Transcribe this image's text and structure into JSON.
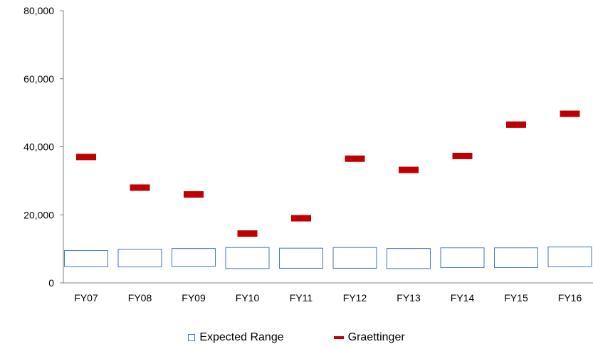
{
  "chart_data": {
    "type": "bar",
    "categories": [
      "FY07",
      "FY08",
      "FY09",
      "FY10",
      "FY11",
      "FY12",
      "FY13",
      "FY14",
      "FY15",
      "FY16"
    ],
    "series": [
      {
        "name": "Expected Range",
        "ranges": [
          [
            4800,
            9500
          ],
          [
            4700,
            9900
          ],
          [
            4900,
            10100
          ],
          [
            4200,
            10400
          ],
          [
            4300,
            10200
          ],
          [
            4300,
            10400
          ],
          [
            4200,
            10100
          ],
          [
            4500,
            10300
          ],
          [
            4500,
            10300
          ],
          [
            4800,
            10600
          ]
        ],
        "color": "#4472C4"
      },
      {
        "name": "Graettinger",
        "values": [
          37000,
          28000,
          26000,
          14500,
          19000,
          36500,
          33200,
          37300,
          46500,
          49700
        ],
        "color": "#C00000"
      }
    ],
    "yticks": [
      "0",
      "20,000",
      "40,000",
      "60,000",
      "80,000"
    ],
    "ylim": [
      0,
      80000
    ],
    "grid": false,
    "legend": "bottom"
  }
}
